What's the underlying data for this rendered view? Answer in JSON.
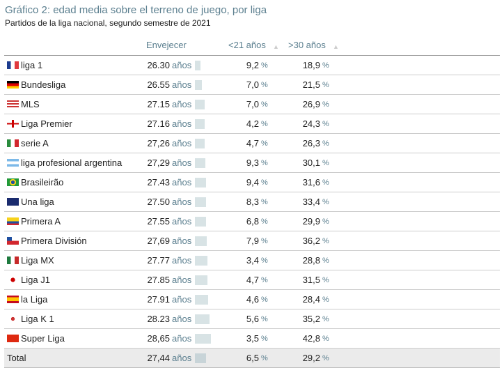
{
  "title": "Gráfico 2: edad media sobre el terreno de juego, por liga",
  "subtitle": "Partidos de la liga nacional, segundo semestre de 2021",
  "chart_data": {
    "type": "table",
    "columns": [
      "Envejecer",
      "<21 años",
      ">30 años"
    ],
    "unit_age": "años",
    "unit_pct": "%",
    "rows": [
      {
        "flag": "fr",
        "name": "liga 1",
        "age": "26.30",
        "age_value": 26.3,
        "u21": "9,2",
        "o30": "18,9"
      },
      {
        "flag": "de",
        "name": "Bundesliga",
        "age": "26.55",
        "age_value": 26.55,
        "u21": "7,0",
        "o30": "21,5"
      },
      {
        "flag": "us",
        "name": "MLS",
        "age": "27.15",
        "age_value": 27.15,
        "u21": "7,0",
        "o30": "26,9"
      },
      {
        "flag": "en",
        "name": "Liga Premier",
        "age": "27.16",
        "age_value": 27.16,
        "u21": "4,2",
        "o30": "24,3"
      },
      {
        "flag": "it",
        "name": "serie A",
        "age": "27,26",
        "age_value": 27.26,
        "u21": "4,7",
        "o30": "26,3"
      },
      {
        "flag": "ar",
        "name": "liga profesional argentina",
        "age": "27,29",
        "age_value": 27.29,
        "u21": "9,3",
        "o30": "30,1"
      },
      {
        "flag": "br",
        "name": "Brasileirão",
        "age": "27.43",
        "age_value": 27.43,
        "u21": "9,4",
        "o30": "31,6"
      },
      {
        "flag": "au",
        "name": "Una liga",
        "age": "27.50",
        "age_value": 27.5,
        "u21": "8,3",
        "o30": "33,4"
      },
      {
        "flag": "co",
        "name": "Primera A",
        "age": "27.55",
        "age_value": 27.55,
        "u21": "6,8",
        "o30": "29,9"
      },
      {
        "flag": "cl",
        "name": "Primera División",
        "age": "27,69",
        "age_value": 27.69,
        "u21": "7,9",
        "o30": "36,2"
      },
      {
        "flag": "mx",
        "name": "Liga MX",
        "age": "27.77",
        "age_value": 27.77,
        "u21": "3,4",
        "o30": "28,8"
      },
      {
        "flag": "jp",
        "name": "Liga J1",
        "age": "27.85",
        "age_value": 27.85,
        "u21": "4,7",
        "o30": "31,5"
      },
      {
        "flag": "es",
        "name": "la Liga",
        "age": "27.91",
        "age_value": 27.91,
        "u21": "4,6",
        "o30": "28,4"
      },
      {
        "flag": "kr",
        "name": "Liga K 1",
        "age": "28.23",
        "age_value": 28.23,
        "u21": "5,6",
        "o30": "35,2"
      },
      {
        "flag": "cn",
        "name": "Super Liga",
        "age": "28,65",
        "age_value": 28.65,
        "u21": "3,5",
        "o30": "42,8"
      }
    ],
    "total": {
      "name": "Total",
      "age": "27,44",
      "age_value": 27.44,
      "u21": "6,5",
      "o30": "29,2"
    }
  }
}
